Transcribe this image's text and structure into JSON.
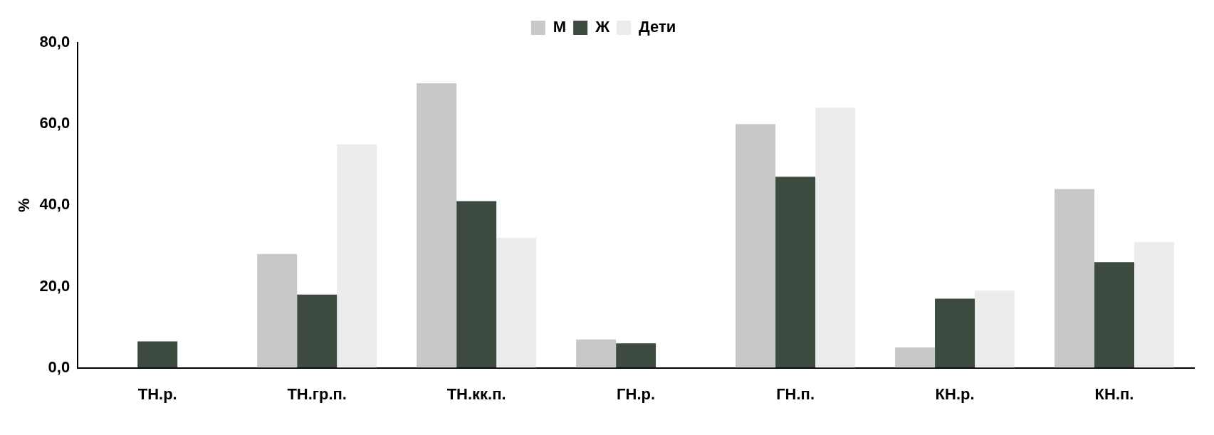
{
  "chart_data": {
    "type": "bar",
    "ylabel": "%",
    "categories": [
      "ТН.р.",
      "ТН.гр.п.",
      "ТН.кк.п.",
      "ГН.р.",
      "ГН.п.",
      "КН.р.",
      "КН.п."
    ],
    "series": [
      {
        "name": "М",
        "color": "#c8c8c8",
        "values": [
          0,
          28,
          70,
          7,
          60,
          5,
          44
        ]
      },
      {
        "name": "Ж",
        "color": "#3d4a3f",
        "values": [
          6.5,
          18,
          41,
          6,
          47,
          17,
          26
        ]
      },
      {
        "name": "Дети",
        "color": "#ececec",
        "values": [
          0,
          55,
          32,
          0,
          64,
          19,
          31
        ]
      }
    ],
    "ylim": [
      0,
      80
    ],
    "yticks": [
      {
        "value": 0,
        "label": "0,0"
      },
      {
        "value": 20,
        "label": "20,0"
      },
      {
        "value": 40,
        "label": "40,0"
      },
      {
        "value": 60,
        "label": "60,0"
      },
      {
        "value": 80,
        "label": "80,0"
      }
    ],
    "grid": false,
    "legend": "top"
  }
}
